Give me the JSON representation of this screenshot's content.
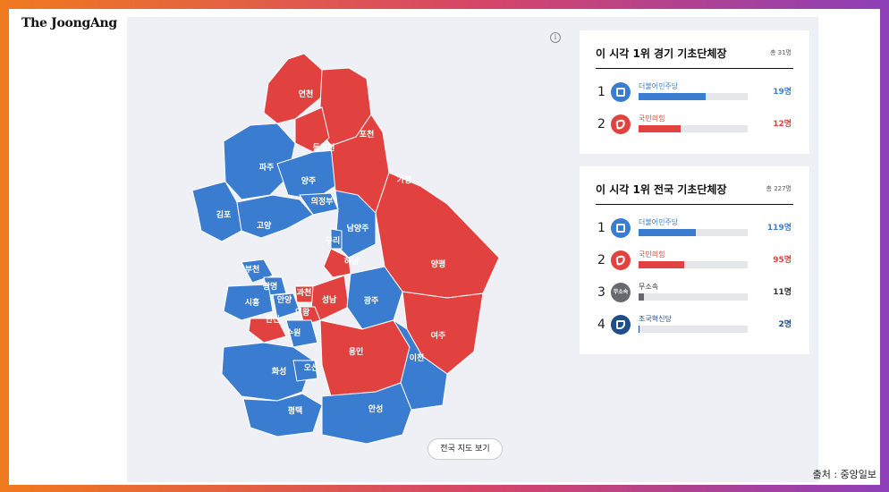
{
  "brand": "The JoongAng",
  "map_button": "전국 지도 보기",
  "info_icon": "i",
  "source": "출처 : 중앙일보",
  "colors": {
    "blue": "#3a7dd0",
    "red": "#e2423f",
    "gray": "#66686d",
    "navy": "#1e4e8a"
  },
  "map_regions": [
    {
      "name": "연천",
      "party": "red"
    },
    {
      "name": "포천",
      "party": "red"
    },
    {
      "name": "동두천",
      "party": "red"
    },
    {
      "name": "파주",
      "party": "blue"
    },
    {
      "name": "양주",
      "party": "blue"
    },
    {
      "name": "가평",
      "party": "red"
    },
    {
      "name": "의정부",
      "party": "blue"
    },
    {
      "name": "김포",
      "party": "blue"
    },
    {
      "name": "고양",
      "party": "blue"
    },
    {
      "name": "남양주",
      "party": "blue"
    },
    {
      "name": "구리",
      "party": "blue"
    },
    {
      "name": "하남",
      "party": "red"
    },
    {
      "name": "양평",
      "party": "red"
    },
    {
      "name": "부천",
      "party": "blue"
    },
    {
      "name": "광명",
      "party": "blue"
    },
    {
      "name": "과천",
      "party": "red"
    },
    {
      "name": "시흥",
      "party": "blue"
    },
    {
      "name": "안양",
      "party": "blue"
    },
    {
      "name": "성남",
      "party": "red"
    },
    {
      "name": "광주",
      "party": "blue"
    },
    {
      "name": "의왕",
      "party": "red"
    },
    {
      "name": "안산",
      "party": "red"
    },
    {
      "name": "수원",
      "party": "blue"
    },
    {
      "name": "여주",
      "party": "red"
    },
    {
      "name": "용인",
      "party": "red"
    },
    {
      "name": "이천",
      "party": "blue"
    },
    {
      "name": "화성",
      "party": "blue"
    },
    {
      "name": "오산",
      "party": "blue"
    },
    {
      "name": "평택",
      "party": "blue"
    },
    {
      "name": "안성",
      "party": "blue"
    }
  ],
  "gyeonggi": {
    "title": "이 시각 1위 경기 기초단체장",
    "total": "총 31명",
    "rows": [
      {
        "rank": "1",
        "party": "더불어민주당",
        "count": "19명",
        "value": 19,
        "color": "#3a7dd0",
        "icon": "democratic-party-icon"
      },
      {
        "rank": "2",
        "party": "국민의힘",
        "count": "12명",
        "value": 12,
        "color": "#e2423f",
        "icon": "people-power-party-icon"
      }
    ]
  },
  "national": {
    "title": "이 시각 1위 전국 기초단체장",
    "total": "총 227명",
    "rows": [
      {
        "rank": "1",
        "party": "더불어민주당",
        "count": "119명",
        "value": 119,
        "color": "#3a7dd0",
        "icon": "democratic-party-icon"
      },
      {
        "rank": "2",
        "party": "국민의힘",
        "count": "95명",
        "value": 95,
        "color": "#e2423f",
        "icon": "people-power-party-icon"
      },
      {
        "rank": "3",
        "party": "무소속",
        "count": "11명",
        "value": 11,
        "color": "#66686d",
        "icon": "independent-icon",
        "icon_text": "무소속"
      },
      {
        "rank": "4",
        "party": "조국혁신당",
        "count": "2명",
        "value": 2,
        "color": "#1e4e8a",
        "icon": "rebuilding-korea-party-icon"
      }
    ]
  }
}
